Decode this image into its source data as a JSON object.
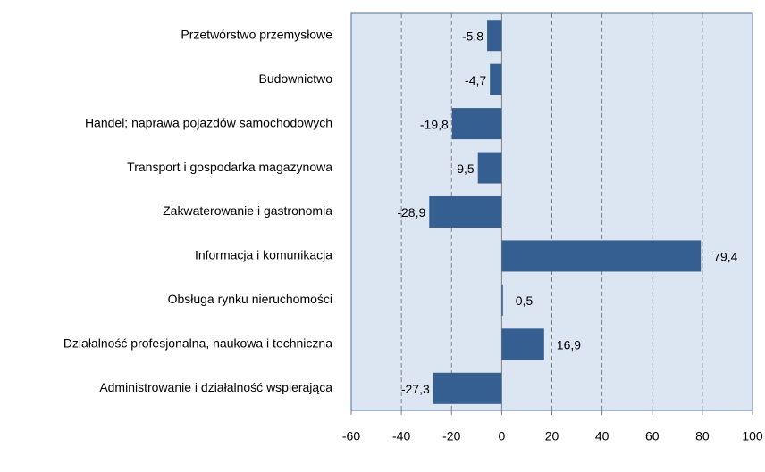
{
  "chart_data": {
    "type": "barh",
    "categories": [
      "Przetwórstwo przemysłowe",
      "Budownictwo",
      "Handel; naprawa pojazdów samochodowych",
      "Transport i gospodarka magazynowa",
      "Zakwaterowanie i gastronomia",
      "Informacja i komunikacja",
      "Obsługa rynku nieruchomości",
      "Działalność profesjonalna, naukowa i techniczna",
      "Administrowanie i działalność wspierająca"
    ],
    "values": [
      -5.8,
      -4.7,
      -19.8,
      -9.5,
      -28.9,
      79.4,
      0.5,
      16.9,
      -27.3
    ],
    "value_labels": [
      "-5,8",
      "-4,7",
      "-19,8",
      "-9,5",
      "-28,9",
      "79,4",
      "0,5",
      "16,9",
      "-27,3"
    ],
    "color": "#355e91",
    "xlim": [
      -60,
      100
    ],
    "xticks": [
      -60,
      -40,
      -20,
      0,
      20,
      40,
      60,
      80,
      100
    ],
    "grid": true
  }
}
